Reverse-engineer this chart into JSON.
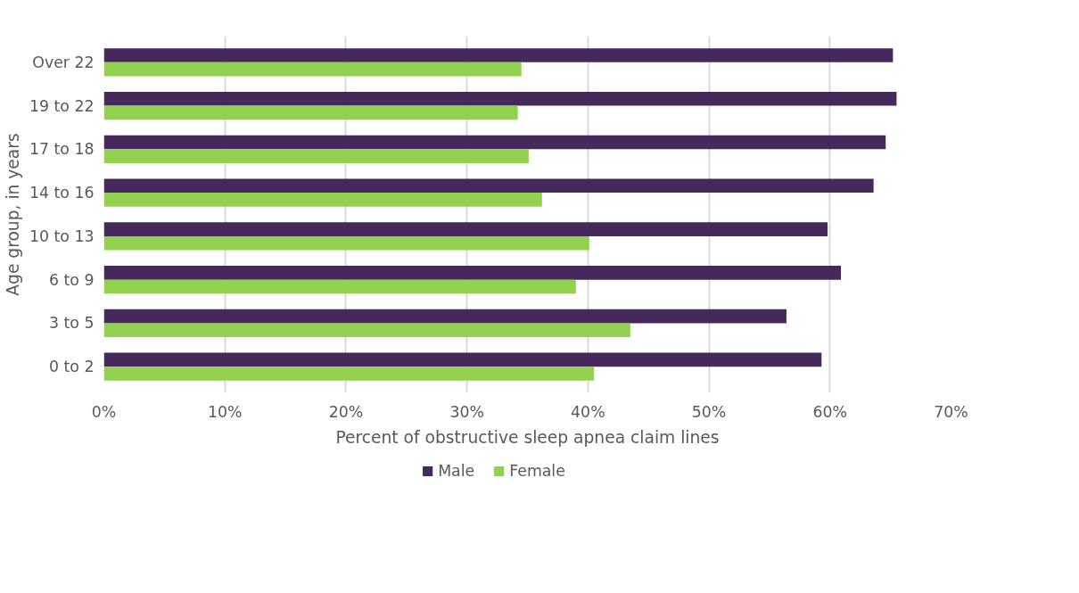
{
  "chart_data": {
    "type": "bar",
    "orientation": "horizontal",
    "xlabel": "Percent of obstructive sleep apnea claim lines",
    "ylabel": "Age group, in years",
    "categories": [
      "Over 22",
      "19 to 22",
      "17 to 18",
      "14 to 16",
      "10 to 13",
      "6 to 9",
      "3 to 5",
      "0 to 2"
    ],
    "series": [
      {
        "name": "Male",
        "color": "#44295a",
        "values": [
          65.2,
          65.5,
          64.6,
          63.6,
          59.8,
          60.9,
          56.4,
          59.3
        ]
      },
      {
        "name": "Female",
        "color": "#92d050",
        "values": [
          34.5,
          34.2,
          35.1,
          36.2,
          40.1,
          39.0,
          43.5,
          40.5
        ]
      }
    ],
    "xlim": [
      0,
      70
    ],
    "xticks": [
      {
        "value": 0,
        "label": "0%"
      },
      {
        "value": 10,
        "label": "10%"
      },
      {
        "value": 20,
        "label": "20%"
      },
      {
        "value": 30,
        "label": "30%"
      },
      {
        "value": 40,
        "label": "40%"
      },
      {
        "value": 50,
        "label": "50%"
      },
      {
        "value": 60,
        "label": "60%"
      },
      {
        "value": 70,
        "label": "70%"
      }
    ],
    "grid": "x",
    "legend": "bottom"
  }
}
